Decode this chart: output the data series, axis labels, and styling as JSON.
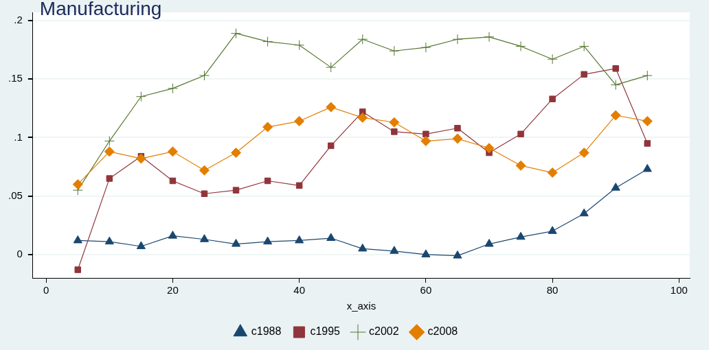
{
  "chart_data": {
    "type": "line",
    "title": "Manufacturing",
    "xlabel": "x_axis",
    "x": [
      5,
      10,
      15,
      20,
      25,
      30,
      35,
      40,
      45,
      50,
      55,
      60,
      65,
      70,
      75,
      80,
      85,
      90,
      95
    ],
    "xlim": [
      -2.1,
      101.7
    ],
    "xticks": [
      0,
      20,
      40,
      60,
      80,
      100
    ],
    "ylim": [
      -0.02,
      0.207
    ],
    "yticks": [
      {
        "value": 0,
        "label": "0"
      },
      {
        "value": 0.05,
        "label": ".05"
      },
      {
        "value": 0.1,
        "label": ".1"
      },
      {
        "value": 0.15,
        "label": ".15"
      },
      {
        "value": 0.2,
        "label": ".2"
      }
    ],
    "grid": "y",
    "legend": "bottom",
    "series": [
      {
        "name": "c1988",
        "color": "#1a476f",
        "marker": "triangle",
        "values": [
          0.012,
          0.011,
          0.007,
          0.016,
          0.013,
          0.009,
          0.011,
          0.012,
          0.014,
          0.005,
          0.003,
          0.0,
          -0.001,
          0.009,
          0.015,
          0.02,
          0.035,
          0.057,
          0.073
        ]
      },
      {
        "name": "c1995",
        "color": "#90353b",
        "marker": "square",
        "values": [
          -0.013,
          0.065,
          0.084,
          0.063,
          0.052,
          0.055,
          0.063,
          0.059,
          0.093,
          0.122,
          0.105,
          0.103,
          0.108,
          0.087,
          0.103,
          0.133,
          0.154,
          0.159,
          0.095
        ]
      },
      {
        "name": "c2002",
        "color": "#55752f",
        "marker": "cross",
        "values": [
          0.055,
          0.097,
          0.135,
          0.142,
          0.153,
          0.189,
          0.182,
          0.179,
          0.16,
          0.184,
          0.174,
          0.177,
          0.184,
          0.186,
          0.178,
          0.167,
          0.178,
          0.145,
          0.153
        ]
      },
      {
        "name": "c2008",
        "color": "#e37e00",
        "marker": "diamond",
        "values": [
          0.06,
          0.088,
          0.082,
          0.088,
          0.072,
          0.087,
          0.109,
          0.114,
          0.126,
          0.117,
          0.113,
          0.097,
          0.099,
          0.091,
          0.076,
          0.07,
          0.087,
          0.119,
          0.114
        ]
      }
    ]
  }
}
